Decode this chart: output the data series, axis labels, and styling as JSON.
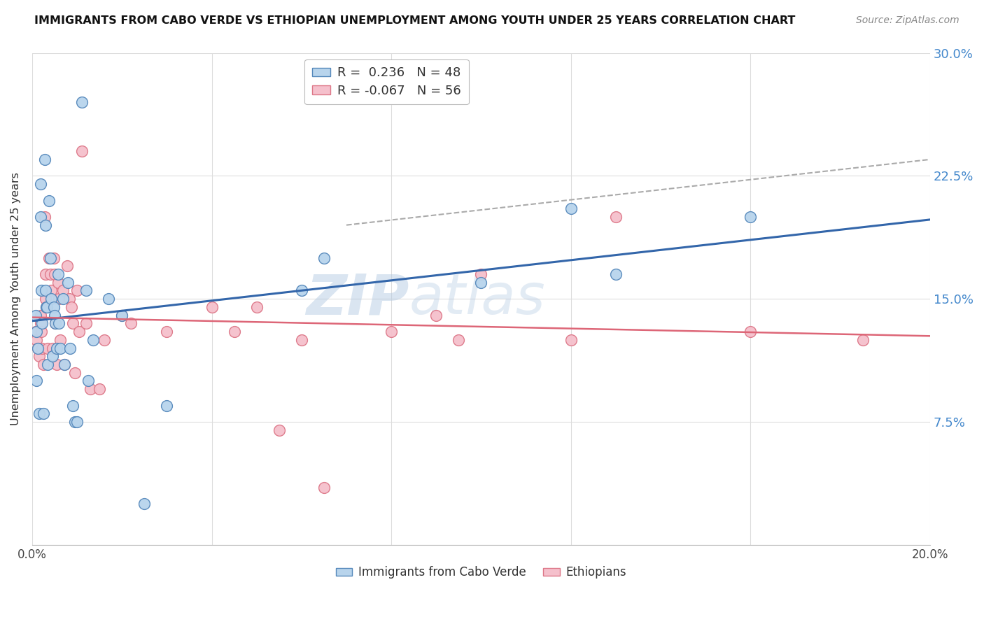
{
  "title": "IMMIGRANTS FROM CABO VERDE VS ETHIOPIAN UNEMPLOYMENT AMONG YOUTH UNDER 25 YEARS CORRELATION CHART",
  "source": "Source: ZipAtlas.com",
  "ylabel": "Unemployment Among Youth under 25 years",
  "xmin": 0.0,
  "xmax": 0.2,
  "ymin": 0.0,
  "ymax": 0.3,
  "watermark_line1": "ZIP",
  "watermark_line2": "atlas",
  "cabo_verde_color": "#b8d4ec",
  "cabo_verde_edge": "#5588bb",
  "ethiopians_color": "#f5c0cc",
  "ethiopians_edge": "#dd7788",
  "trendline1_color": "#3366aa",
  "trendline2_color": "#dd6677",
  "dashed_color": "#aaaaaa",
  "cabo_verde_x": [
    0.0008,
    0.001,
    0.001,
    0.0012,
    0.0015,
    0.0018,
    0.0018,
    0.002,
    0.0022,
    0.0025,
    0.0028,
    0.003,
    0.003,
    0.0032,
    0.0033,
    0.0035,
    0.0038,
    0.004,
    0.0042,
    0.0045,
    0.0048,
    0.005,
    0.0052,
    0.0055,
    0.0058,
    0.006,
    0.0062,
    0.0068,
    0.0072,
    0.008,
    0.0085,
    0.009,
    0.0095,
    0.01,
    0.011,
    0.012,
    0.0125,
    0.0135,
    0.017,
    0.02,
    0.025,
    0.03,
    0.06,
    0.065,
    0.1,
    0.12,
    0.13,
    0.16
  ],
  "cabo_verde_y": [
    0.14,
    0.13,
    0.1,
    0.12,
    0.08,
    0.22,
    0.2,
    0.155,
    0.135,
    0.08,
    0.235,
    0.195,
    0.155,
    0.145,
    0.145,
    0.11,
    0.21,
    0.175,
    0.15,
    0.115,
    0.145,
    0.14,
    0.135,
    0.12,
    0.165,
    0.135,
    0.12,
    0.15,
    0.11,
    0.16,
    0.12,
    0.085,
    0.075,
    0.075,
    0.27,
    0.155,
    0.1,
    0.125,
    0.15,
    0.14,
    0.025,
    0.085,
    0.155,
    0.175,
    0.16,
    0.205,
    0.165,
    0.2
  ],
  "ethiopians_x": [
    0.0008,
    0.001,
    0.0012,
    0.0015,
    0.0018,
    0.0018,
    0.002,
    0.0022,
    0.0025,
    0.0028,
    0.003,
    0.003,
    0.0032,
    0.0035,
    0.0038,
    0.004,
    0.0042,
    0.0045,
    0.0048,
    0.005,
    0.0052,
    0.0055,
    0.0058,
    0.006,
    0.0062,
    0.0068,
    0.0072,
    0.0078,
    0.0082,
    0.0088,
    0.009,
    0.0095,
    0.01,
    0.0105,
    0.011,
    0.012,
    0.013,
    0.015,
    0.016,
    0.02,
    0.022,
    0.03,
    0.04,
    0.045,
    0.05,
    0.055,
    0.06,
    0.065,
    0.08,
    0.09,
    0.095,
    0.1,
    0.12,
    0.13,
    0.16,
    0.185
  ],
  "ethiopians_y": [
    0.13,
    0.125,
    0.12,
    0.115,
    0.14,
    0.135,
    0.13,
    0.12,
    0.11,
    0.2,
    0.165,
    0.15,
    0.145,
    0.12,
    0.175,
    0.165,
    0.155,
    0.12,
    0.175,
    0.165,
    0.135,
    0.11,
    0.16,
    0.15,
    0.125,
    0.155,
    0.11,
    0.17,
    0.15,
    0.145,
    0.135,
    0.105,
    0.155,
    0.13,
    0.24,
    0.135,
    0.095,
    0.095,
    0.125,
    0.14,
    0.135,
    0.13,
    0.145,
    0.13,
    0.145,
    0.07,
    0.125,
    0.035,
    0.13,
    0.14,
    0.125,
    0.165,
    0.125,
    0.2,
    0.13,
    0.125
  ]
}
